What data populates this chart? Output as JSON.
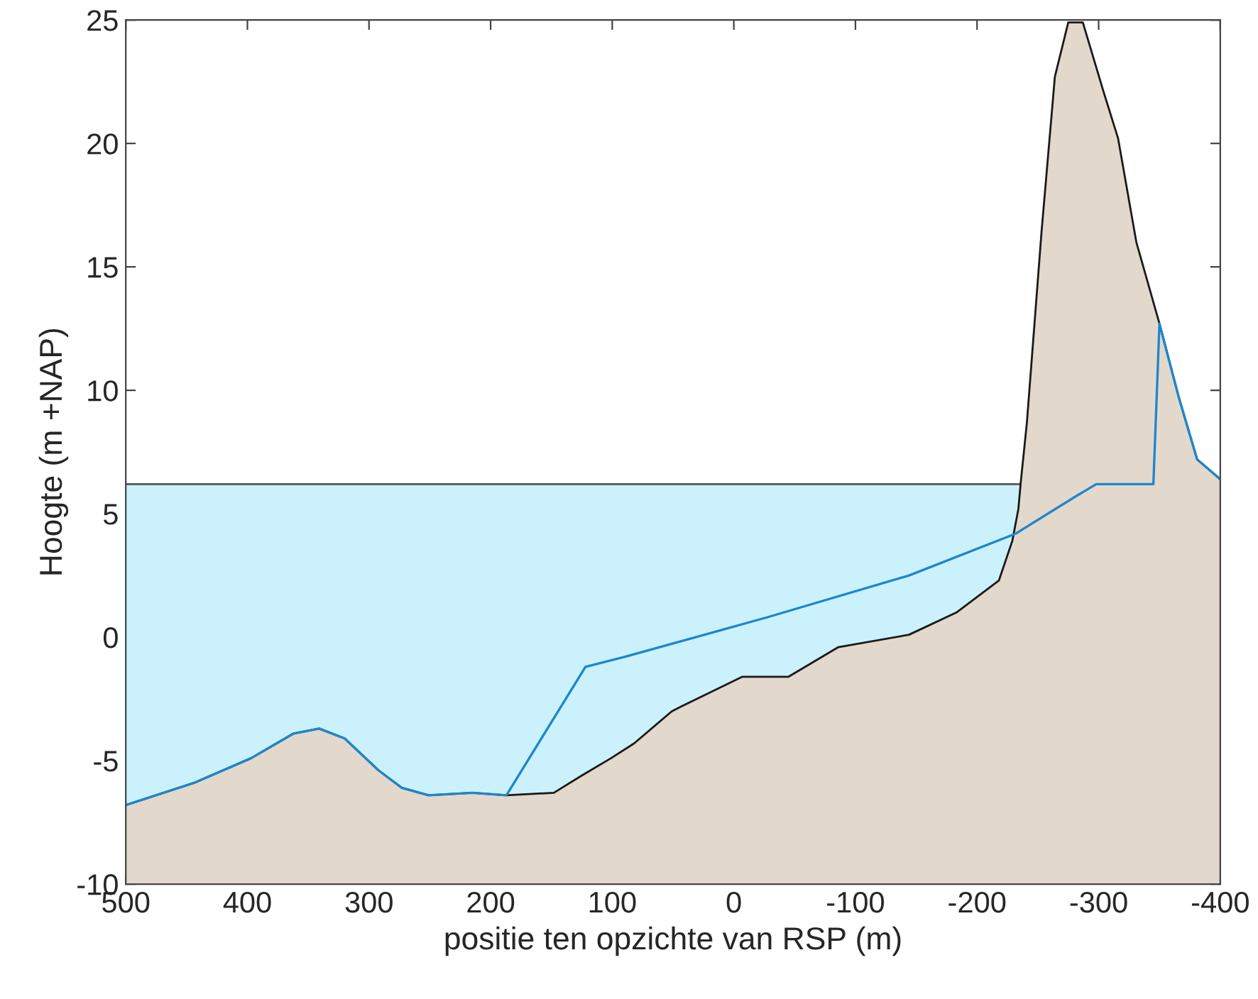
{
  "chart_data": {
    "type": "area",
    "xlabel": "positie ten opzichte van RSP (m)",
    "ylabel": "Hoogte (m +NAP)",
    "xlim": [
      500,
      -400
    ],
    "xticks": [
      500,
      400,
      300,
      200,
      100,
      0,
      -100,
      -200,
      -300,
      -400
    ],
    "ylim": [
      -10,
      25
    ],
    "yticks": [
      -10,
      -5,
      0,
      5,
      10,
      15,
      20,
      25
    ],
    "grid": false,
    "legend": false,
    "series": [
      {
        "color": "#cbf2fc",
        "x": [
          500,
          -236
        ],
        "values": [
          6.2,
          6.2
        ]
      },
      {
        "color": "#e3d8cc",
        "x": [
          500,
          444,
          397,
          362,
          341,
          320,
          292,
          273,
          251,
          215,
          187,
          148,
          125,
          101,
          82,
          51,
          43,
          -7,
          -45,
          -86,
          -144,
          -183,
          -218,
          -229,
          -234,
          -236,
          -241,
          -253,
          -264,
          -275,
          -287,
          -304,
          -316,
          -331,
          -350,
          -366,
          -381,
          -400
        ],
        "values": [
          -6.8,
          -5.9,
          -4.9,
          -3.9,
          -3.7,
          -4.1,
          -5.4,
          -6.1,
          -6.4,
          -6.3,
          -6.4,
          -6.3,
          -5.6,
          -4.9,
          -4.3,
          -3.0,
          -2.8,
          -1.6,
          -1.6,
          -0.4,
          0.1,
          1.0,
          2.3,
          3.9,
          5.2,
          6.3,
          8.7,
          16.4,
          22.7,
          24.9,
          24.9,
          22.1,
          20.2,
          16.0,
          12.7,
          9.7,
          7.2,
          6.4
        ]
      },
      {
        "type": "line",
        "color": "#1f86cc",
        "x": [
          500,
          444,
          397,
          362,
          341,
          320,
          292,
          273,
          251,
          215,
          187,
          122,
          90,
          -27,
          -144,
          -232,
          -281,
          -298,
          -345,
          -350,
          -366,
          -381,
          -400
        ],
        "values": [
          -6.8,
          -5.9,
          -4.9,
          -3.9,
          -3.7,
          -4.1,
          -5.4,
          -6.1,
          -6.4,
          -6.3,
          -6.4,
          -1.2,
          -0.8,
          0.8,
          2.5,
          4.2,
          5.7,
          6.2,
          6.2,
          12.7,
          9.7,
          7.2,
          6.4
        ]
      }
    ]
  }
}
